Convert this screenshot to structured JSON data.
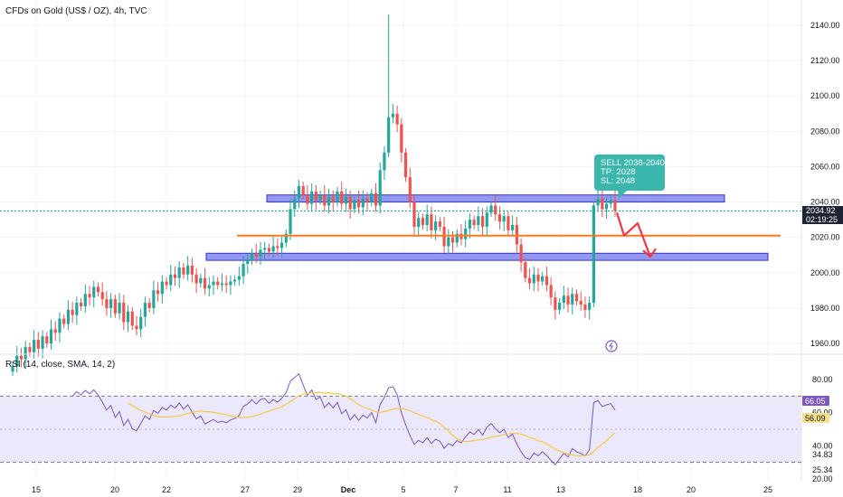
{
  "colors": {
    "up": "#26a69a",
    "down": "#ef5350",
    "zone_fill": "#9598f3",
    "zone_stroke": "#2f33c8",
    "level_line": "#f57c1f",
    "arrow": "#f23645",
    "callout": "#3bb6ad",
    "price_badge": "#1e2433",
    "rsi_line": "#7e57c2",
    "rsi_sma": "#f2c94c",
    "rsi_band": "#ece8fb",
    "rsi_badge": "#7e57c2",
    "sma_badge": "#f7e08a"
  },
  "chart_data": [
    {
      "type": "candlestick",
      "title": "CFDs on Gold (US$ / OZ), 4h, TVC",
      "y_tick_labels": [
        "1960.00",
        "1980.00",
        "2000.00",
        "2020.00",
        "2040.00",
        "2060.00",
        "2080.00",
        "2100.00",
        "2120.00",
        "2140.00"
      ],
      "y_ticks": [
        1960,
        1980,
        2000,
        2020,
        2040,
        2060,
        2080,
        2100,
        2120,
        2140
      ],
      "x_tick_labels": [
        "15",
        "20",
        "22",
        "27",
        "29",
        "Dec",
        "5",
        "7",
        "11",
        "13",
        "18",
        "20",
        "25"
      ],
      "grid": true,
      "last_price": {
        "value": "2034.92",
        "countdown": "02:19:25"
      },
      "closes": [
        1947,
        1953,
        1951,
        1958,
        1955,
        1962,
        1957,
        1964,
        1960,
        1968,
        1966,
        1974,
        1971,
        1979,
        1976,
        1983,
        1981,
        1988,
        1986,
        1992,
        1989,
        1985,
        1980,
        1985,
        1977,
        1983,
        1972,
        1978,
        1970,
        1968,
        1975,
        1983,
        1980,
        1990,
        1988,
        1995,
        1993,
        1999,
        1997,
        2003,
        1999,
        2004,
        1999,
        1994,
        1997,
        1991,
        1993,
        1995,
        1993,
        1994,
        1993,
        1995,
        1996,
        1998,
        2005,
        2007,
        2011,
        2009,
        2013,
        2014,
        2012,
        2015,
        2014,
        2017,
        2022,
        2036,
        2042,
        2049,
        2044,
        2039,
        2046,
        2041,
        2044,
        2038,
        2043,
        2040,
        2046,
        2039,
        2043,
        2036,
        2041,
        2037,
        2042,
        2040,
        2045,
        2038,
        2058,
        2068,
        2088,
        2090,
        2084,
        2068,
        2054,
        2040,
        2026,
        2031,
        2027,
        2033,
        2024,
        2029,
        2026,
        2015,
        2020,
        2017,
        2022,
        2019,
        2025,
        2030,
        2027,
        2032,
        2026,
        2034,
        2038,
        2033,
        2029,
        2032,
        2024,
        2027,
        2016,
        2006,
        1997,
        1994,
        1999,
        1995,
        1998,
        1993,
        1986,
        1979,
        1983,
        1987,
        1982,
        1988,
        1984,
        1982,
        1979,
        1983,
        2038,
        2042,
        2036,
        2039,
        2041,
        2035
      ],
      "opens": [
        1944,
        1947,
        1953,
        1951,
        1958,
        1955,
        1962,
        1957,
        1964,
        1960,
        1968,
        1966,
        1974,
        1971,
        1979,
        1976,
        1983,
        1981,
        1988,
        1986,
        1992,
        1989,
        1985,
        1980,
        1985,
        1977,
        1983,
        1972,
        1978,
        1970,
        1968,
        1975,
        1983,
        1980,
        1990,
        1988,
        1995,
        1993,
        1999,
        1997,
        2003,
        1999,
        2004,
        1999,
        1994,
        1997,
        1991,
        1993,
        1995,
        1993,
        1994,
        1993,
        1995,
        1996,
        1998,
        2005,
        2007,
        2011,
        2009,
        2013,
        2014,
        2012,
        2015,
        2014,
        2017,
        2022,
        2036,
        2042,
        2049,
        2044,
        2039,
        2046,
        2041,
        2044,
        2038,
        2043,
        2040,
        2046,
        2039,
        2043,
        2036,
        2041,
        2037,
        2042,
        2040,
        2045,
        2038,
        2058,
        2068,
        2088,
        2090,
        2084,
        2068,
        2054,
        2040,
        2026,
        2031,
        2027,
        2033,
        2024,
        2029,
        2026,
        2015,
        2020,
        2017,
        2022,
        2019,
        2025,
        2030,
        2027,
        2032,
        2026,
        2034,
        2038,
        2033,
        2029,
        2032,
        2024,
        2027,
        2016,
        2006,
        1997,
        1994,
        1999,
        1995,
        1998,
        1993,
        1986,
        1979,
        1983,
        1987,
        1982,
        1988,
        1984,
        1982,
        1979,
        1983,
        2038,
        2042,
        2036,
        2039,
        2041
      ],
      "spike_high": 2146,
      "zones": [
        {
          "label": "upper resistance zone",
          "from": 2040,
          "to": 2044
        },
        {
          "label": "lower support zone",
          "from": 2007,
          "to": 2011
        }
      ],
      "level_line": 2021,
      "projection": [
        2034,
        2021,
        2028,
        2009
      ],
      "annotation": [
        "SELL 2038-2040",
        "TP: 2028",
        "SL: 2048"
      ]
    },
    {
      "type": "line",
      "title": "RSI (14, close, SMA, 14, 2)",
      "y_tick_labels": [
        "80.00",
        "60.00",
        "40.00",
        "25.34",
        "20.00"
      ],
      "y_ticks": [
        80,
        60,
        40,
        25.34,
        20
      ],
      "band": [
        30,
        70
      ],
      "rsi_value": "66.05",
      "sma_value": "56.09",
      "other_labels": [
        "34.83"
      ]
    }
  ]
}
